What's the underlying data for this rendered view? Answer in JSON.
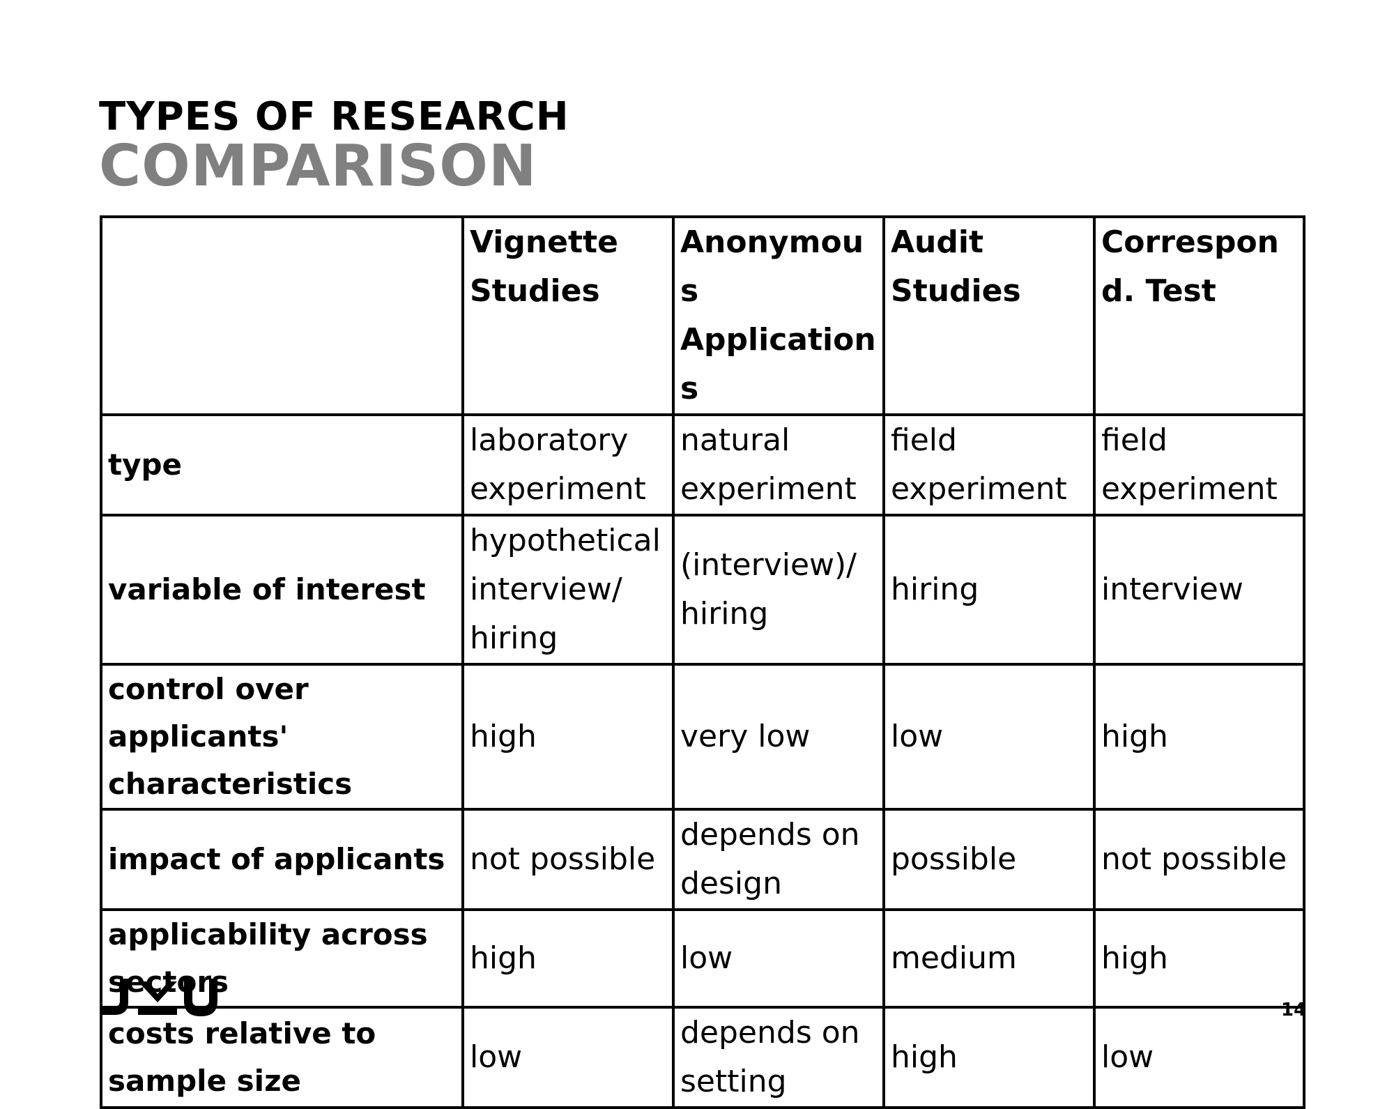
{
  "slide": {
    "title_line1": "TYPES OF RESEARCH",
    "title_line2": "COMPARISON",
    "page_number": "14",
    "logo_text": "JKU"
  },
  "table": {
    "columns": [
      "",
      "Vignette Studies",
      "Anonymous Applications",
      "Audit Studies",
      "Correspond. Test"
    ],
    "rows": [
      {
        "label": "type",
        "cells": [
          "laboratory experiment",
          "natural experiment",
          "field experiment",
          "field experiment"
        ]
      },
      {
        "label": "variable of interest",
        "cells": [
          "hypothetical interview/ hiring",
          "(interview)/ hiring",
          "hiring",
          "interview"
        ]
      },
      {
        "label": "control over applicants' characteristics",
        "cells": [
          "high",
          "very low",
          "low",
          "high"
        ]
      },
      {
        "label": "impact of applicants",
        "cells": [
          "not possible",
          "depends on design",
          "possible",
          "not possible"
        ]
      },
      {
        "label": "applicability across sectors",
        "cells": [
          "high",
          "low",
          "medium",
          "high"
        ]
      },
      {
        "label": "costs relative to sample size",
        "cells": [
          "low",
          "depends on setting",
          "high",
          "low"
        ]
      }
    ]
  }
}
